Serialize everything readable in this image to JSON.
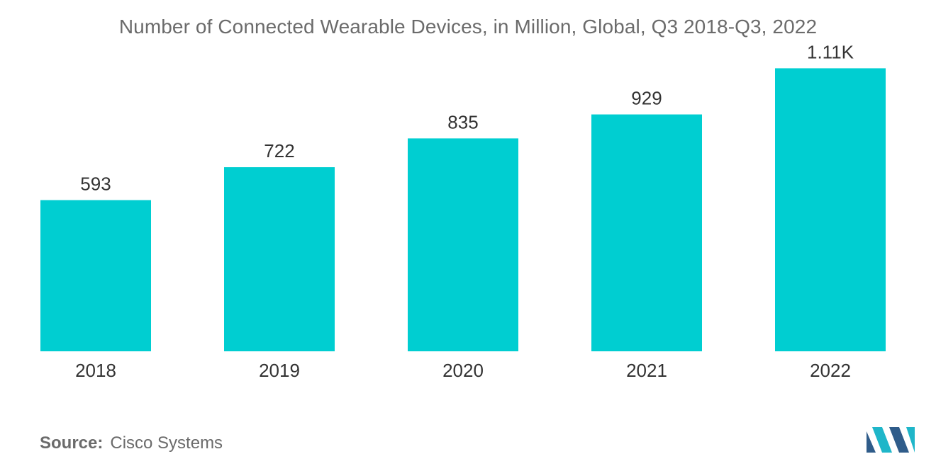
{
  "chart_data": {
    "type": "bar",
    "title": "Number of Connected Wearable Devices, in Million, Global, Q3 2018-Q3, 2022",
    "categories": [
      "2018",
      "2019",
      "2020",
      "2021",
      "2022"
    ],
    "values": [
      593,
      722,
      835,
      929,
      1110
    ],
    "data_labels": [
      "593",
      "722",
      "835",
      "929",
      "1.11K"
    ],
    "xlabel": "",
    "ylabel": "",
    "ylim": [
      0,
      1200
    ],
    "grid": false,
    "legend": "none",
    "bar_color": "#00CED1"
  },
  "source": {
    "key": "Source:",
    "value": "Cisco Systems"
  },
  "logo": {
    "icon": "mordor-intelligence-logo-icon",
    "colors": [
      "#2F5C8A",
      "#1FB6C9"
    ]
  }
}
